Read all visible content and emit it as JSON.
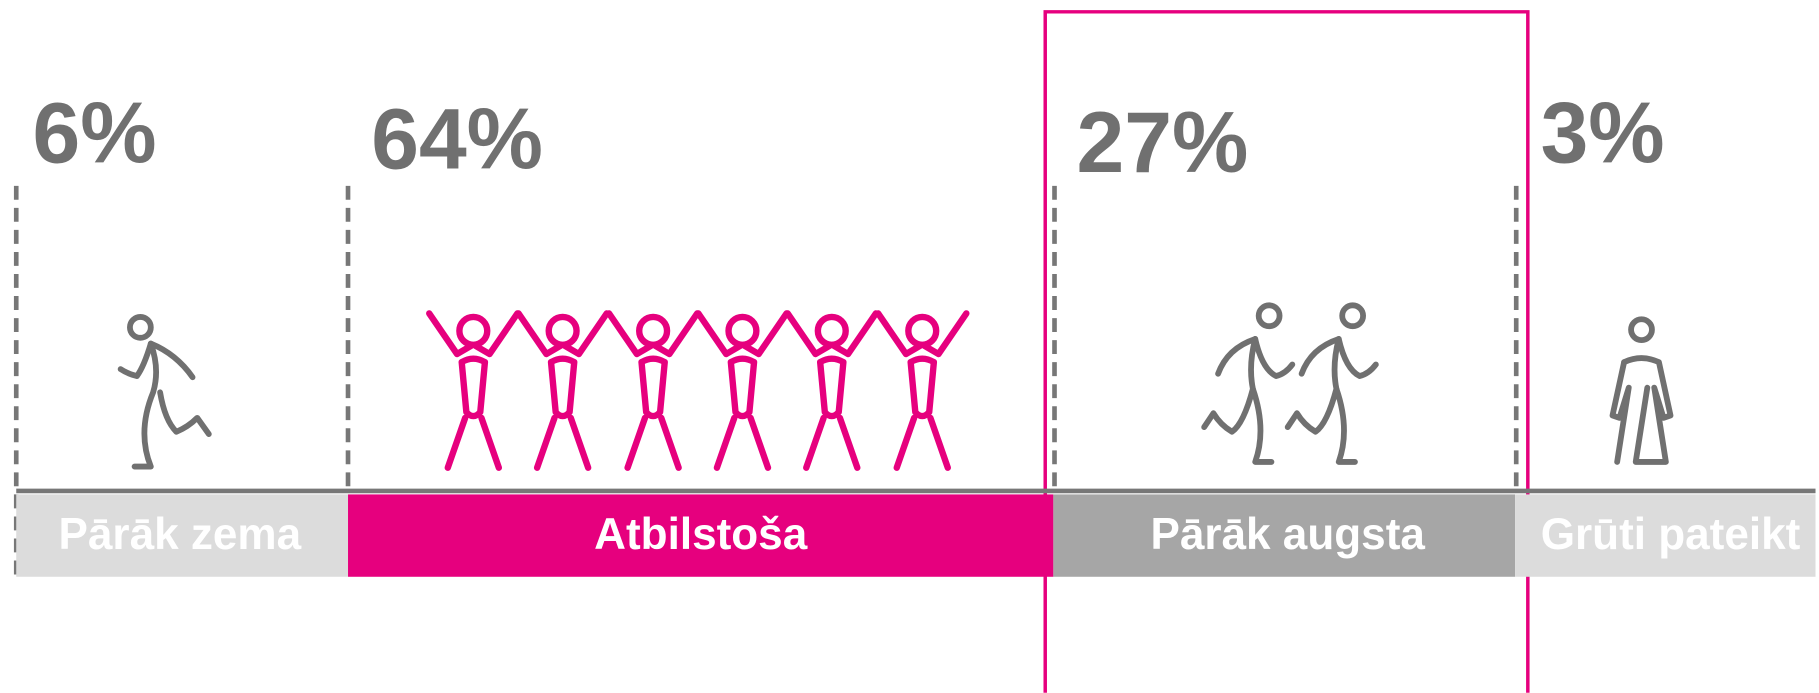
{
  "segments": [
    {
      "value": "6%",
      "label": "Pārāk zema"
    },
    {
      "value": "64%",
      "label": "Atbilstoša"
    },
    {
      "value": "27%",
      "label": "Pārāk augsta"
    },
    {
      "value": "3%",
      "label": "Grūti pateikt"
    }
  ]
}
